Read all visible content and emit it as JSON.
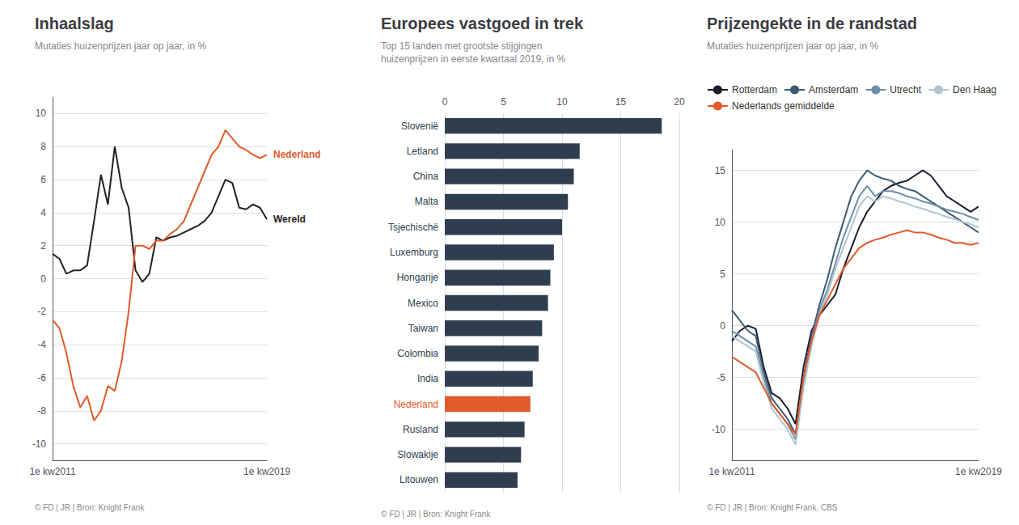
{
  "chart_data": [
    {
      "type": "line",
      "title": "Inhaalslag",
      "subtitle": "Mutaties huizenprijzen jaar op jaar, in %",
      "source": "© FD | JR | Bron: Knight Frank",
      "categories": [
        "1e kw2011",
        null,
        null,
        null,
        null,
        null,
        null,
        null,
        null,
        null,
        null,
        null,
        null,
        null,
        null,
        null,
        null,
        null,
        null,
        null,
        null,
        null,
        null,
        null,
        null,
        null,
        null,
        null,
        null,
        null,
        null,
        "1e kw2019"
      ],
      "series": [
        {
          "name": "Wereld",
          "color": "#222222",
          "values": [
            1.5,
            1.2,
            0.3,
            0.5,
            0.5,
            0.8,
            3.5,
            6.3,
            4.5,
            8.0,
            5.5,
            4.3,
            0.5,
            -0.2,
            0.3,
            2.5,
            2.3,
            2.5,
            2.6,
            2.8,
            3.0,
            3.2,
            3.5,
            4.0,
            5.0,
            6.0,
            5.8,
            4.3,
            4.2,
            4.5,
            4.3,
            3.6
          ]
        },
        {
          "name": "Nederland",
          "color": "#e05a2b",
          "values": [
            -2.5,
            -3.0,
            -4.5,
            -6.5,
            -7.8,
            -7.1,
            -8.6,
            -8.0,
            -6.5,
            -6.8,
            -5.0,
            -2.0,
            2.0,
            2.0,
            1.8,
            2.3,
            2.3,
            2.7,
            3.0,
            3.5,
            4.5,
            5.5,
            6.5,
            7.5,
            8.0,
            9.0,
            8.5,
            8.0,
            7.8,
            7.5,
            7.3,
            7.5
          ]
        }
      ],
      "ylim": [
        -11,
        11
      ],
      "yticks": [
        -10,
        -8,
        -6,
        -4,
        -2,
        0,
        2,
        4,
        6,
        8,
        10
      ],
      "grid": true
    },
    {
      "type": "bar",
      "orientation": "horizontal",
      "title": "Europees vastgoed in trek",
      "subtitle": "Top 15 landen met grootste stijgingen\nhuizenprijzen in eerste kwartaal 2019, in %",
      "source": "© FD | JR | Bron: Knight Frank",
      "categories": [
        "Slovenië",
        "Letland",
        "China",
        "Malta",
        "Tsjechischë",
        "Luxemburg",
        "Hongarije",
        "Mexico",
        "Taiwan",
        "Colombia",
        "India",
        "Nederland",
        "Rusland",
        "Slowakije",
        "Litouwen"
      ],
      "values": [
        18.5,
        11.5,
        11.0,
        10.5,
        10.0,
        9.3,
        9.0,
        8.8,
        8.3,
        8.0,
        7.5,
        7.3,
        6.8,
        6.5,
        6.2
      ],
      "colors": [
        "#2e3e4e",
        "#2e3e4e",
        "#2e3e4e",
        "#2e3e4e",
        "#2e3e4e",
        "#2e3e4e",
        "#2e3e4e",
        "#2e3e4e",
        "#2e3e4e",
        "#2e3e4e",
        "#2e3e4e",
        "#e05a2b",
        "#2e3e4e",
        "#2e3e4e",
        "#2e3e4e"
      ],
      "xlim": [
        0,
        20
      ],
      "xticks": [
        0,
        5,
        10,
        15,
        20
      ],
      "grid": true
    },
    {
      "type": "line",
      "title": "Prijzengekte in de randstad",
      "subtitle": "Mutaties huizenprijzen jaar op jaar, in %",
      "source": "© FD | JR | Bron: Knight Frank, CBS",
      "categories": [
        "1e kw2011",
        null,
        null,
        null,
        null,
        null,
        null,
        null,
        null,
        null,
        null,
        null,
        null,
        null,
        null,
        null,
        null,
        null,
        null,
        null,
        null,
        null,
        null,
        null,
        null,
        null,
        null,
        null,
        null,
        null,
        null,
        "1e kw2019"
      ],
      "series": [
        {
          "name": "Rotterdam",
          "color": "#1c1c2e",
          "values": [
            -1.5,
            -0.5,
            0.0,
            -0.3,
            -4.0,
            -6.5,
            -7.0,
            -8.0,
            -9.5,
            -4.0,
            -0.5,
            1.0,
            2.0,
            3.0,
            5.5,
            7.5,
            9.5,
            11.0,
            12.0,
            13.0,
            13.5,
            13.8,
            14.0,
            14.5,
            15.0,
            14.5,
            13.5,
            12.5,
            12.0,
            11.5,
            11.0,
            11.5
          ]
        },
        {
          "name": "Amsterdam",
          "color": "#3d5a72",
          "values": [
            1.5,
            0.5,
            -0.5,
            -1.0,
            -4.5,
            -7.0,
            -8.0,
            -9.0,
            -10.5,
            -5.0,
            -1.0,
            2.0,
            4.5,
            7.5,
            10.0,
            12.5,
            14.0,
            15.0,
            14.5,
            14.2,
            14.0,
            13.5,
            13.2,
            13.0,
            12.5,
            12.0,
            11.5,
            11.0,
            10.5,
            10.0,
            9.5,
            9.0
          ]
        },
        {
          "name": "Utrecht",
          "color": "#6b8fa8",
          "values": [
            -0.5,
            -1.0,
            -1.5,
            -2.0,
            -5.0,
            -7.5,
            -8.5,
            -9.5,
            -11.0,
            -5.5,
            -1.5,
            1.5,
            3.5,
            6.0,
            8.5,
            10.5,
            12.5,
            13.5,
            12.5,
            13.0,
            13.0,
            12.8,
            12.5,
            12.3,
            12.0,
            11.8,
            11.5,
            11.2,
            11.0,
            10.8,
            10.5,
            10.2
          ]
        },
        {
          "name": "Den Haag",
          "color": "#b0c4d0",
          "values": [
            -1.0,
            -1.5,
            -2.0,
            -2.5,
            -5.5,
            -8.0,
            -9.0,
            -10.0,
            -11.5,
            -6.0,
            -2.0,
            1.0,
            3.0,
            5.5,
            7.5,
            9.5,
            11.5,
            12.5,
            12.0,
            12.5,
            12.3,
            12.0,
            11.8,
            11.5,
            11.3,
            11.0,
            10.8,
            10.5,
            10.3,
            10.0,
            9.8,
            9.5
          ]
        },
        {
          "name": "Nederlands gemiddelde",
          "color": "#e05a2b",
          "values": [
            -3.0,
            -3.5,
            -4.0,
            -4.5,
            -6.0,
            -7.5,
            -8.5,
            -9.5,
            -10.5,
            -5.0,
            -1.5,
            1.0,
            2.5,
            4.0,
            5.5,
            6.5,
            7.5,
            8.0,
            8.3,
            8.5,
            8.8,
            9.0,
            9.2,
            9.0,
            9.0,
            8.8,
            8.5,
            8.3,
            8.0,
            8.0,
            7.8,
            8.0
          ]
        }
      ],
      "ylim": [
        -13,
        17
      ],
      "yticks": [
        -10,
        -5,
        0,
        5,
        10,
        15
      ],
      "grid": true,
      "legend": "top"
    }
  ]
}
